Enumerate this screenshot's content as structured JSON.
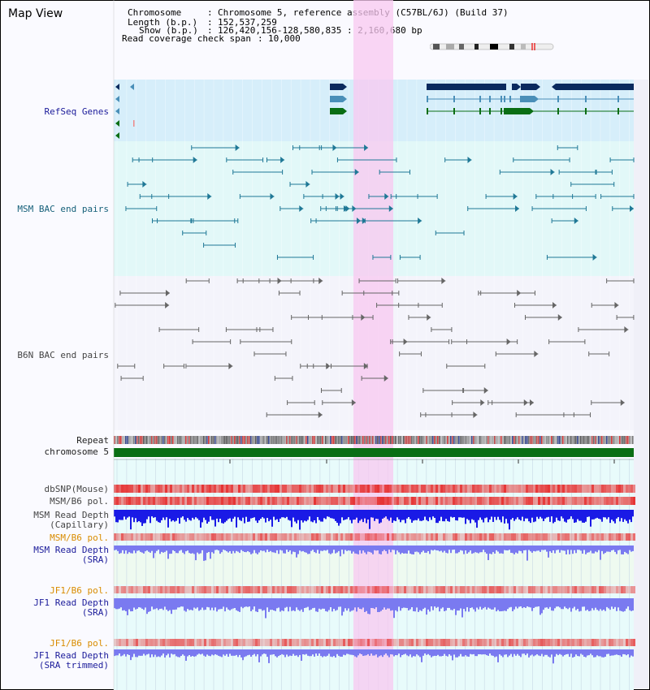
{
  "title": "Map View",
  "info": {
    "chromosome_key": "Chromosome",
    "chromosome_value": "Chromosome 5, reference assembly (C57BL/6J) (Build 37)",
    "length_key": "Length (b.p.)",
    "length_value": "152,537,259",
    "show_key": "Show (b.p.)",
    "show_value": "126,420,156-128,580,835 : 2,160,680 bp",
    "coverage_key": "Read coverage check span",
    "coverage_value": "10,000"
  },
  "tracks": {
    "refseq": "RefSeq Genes",
    "msm_bac": "MSM BAC end pairs",
    "b6n_bac": "B6N BAC end pairs",
    "repeat": "Repeat",
    "chromosome": "chromosome 5",
    "dbsnp": "dbSNP(Mouse)",
    "msm_pol_1": "MSM/B6 pol.",
    "msm_depth_cap_1": "MSM Read Depth",
    "msm_depth_cap_2": "(Capillary)",
    "msm_pol_2": "MSM/B6 pol.",
    "msm_depth_sra_1": "MSM Read Depth",
    "msm_depth_sra_2": "(SRA)",
    "jf1_pol_1": "JF1/B6 pol.",
    "jf1_depth_sra_1": "JF1 Read Depth",
    "jf1_depth_sra_2": "(SRA)",
    "jf1_pol_2": "JF1/B6 pol.",
    "jf1_depth_trim_1": "JF1 Read Depth",
    "jf1_depth_trim_2": "(SRA trimmed)"
  },
  "axis": {
    "ticks": [
      "126800000",
      "127200000",
      "127600000",
      "128000000",
      "128400000"
    ]
  },
  "colors": {
    "gene_navy": "#0a2a5e",
    "gene_blue": "#4a8fb8",
    "gene_green": "#0a6e14",
    "bac_teal": "#1f7896",
    "bac_gray": "#666666",
    "highlight": "#f8c8f0",
    "depth_blue": "#1a1ae6",
    "depth_light": "#7a7af0",
    "pol_red": "#e63333"
  }
}
